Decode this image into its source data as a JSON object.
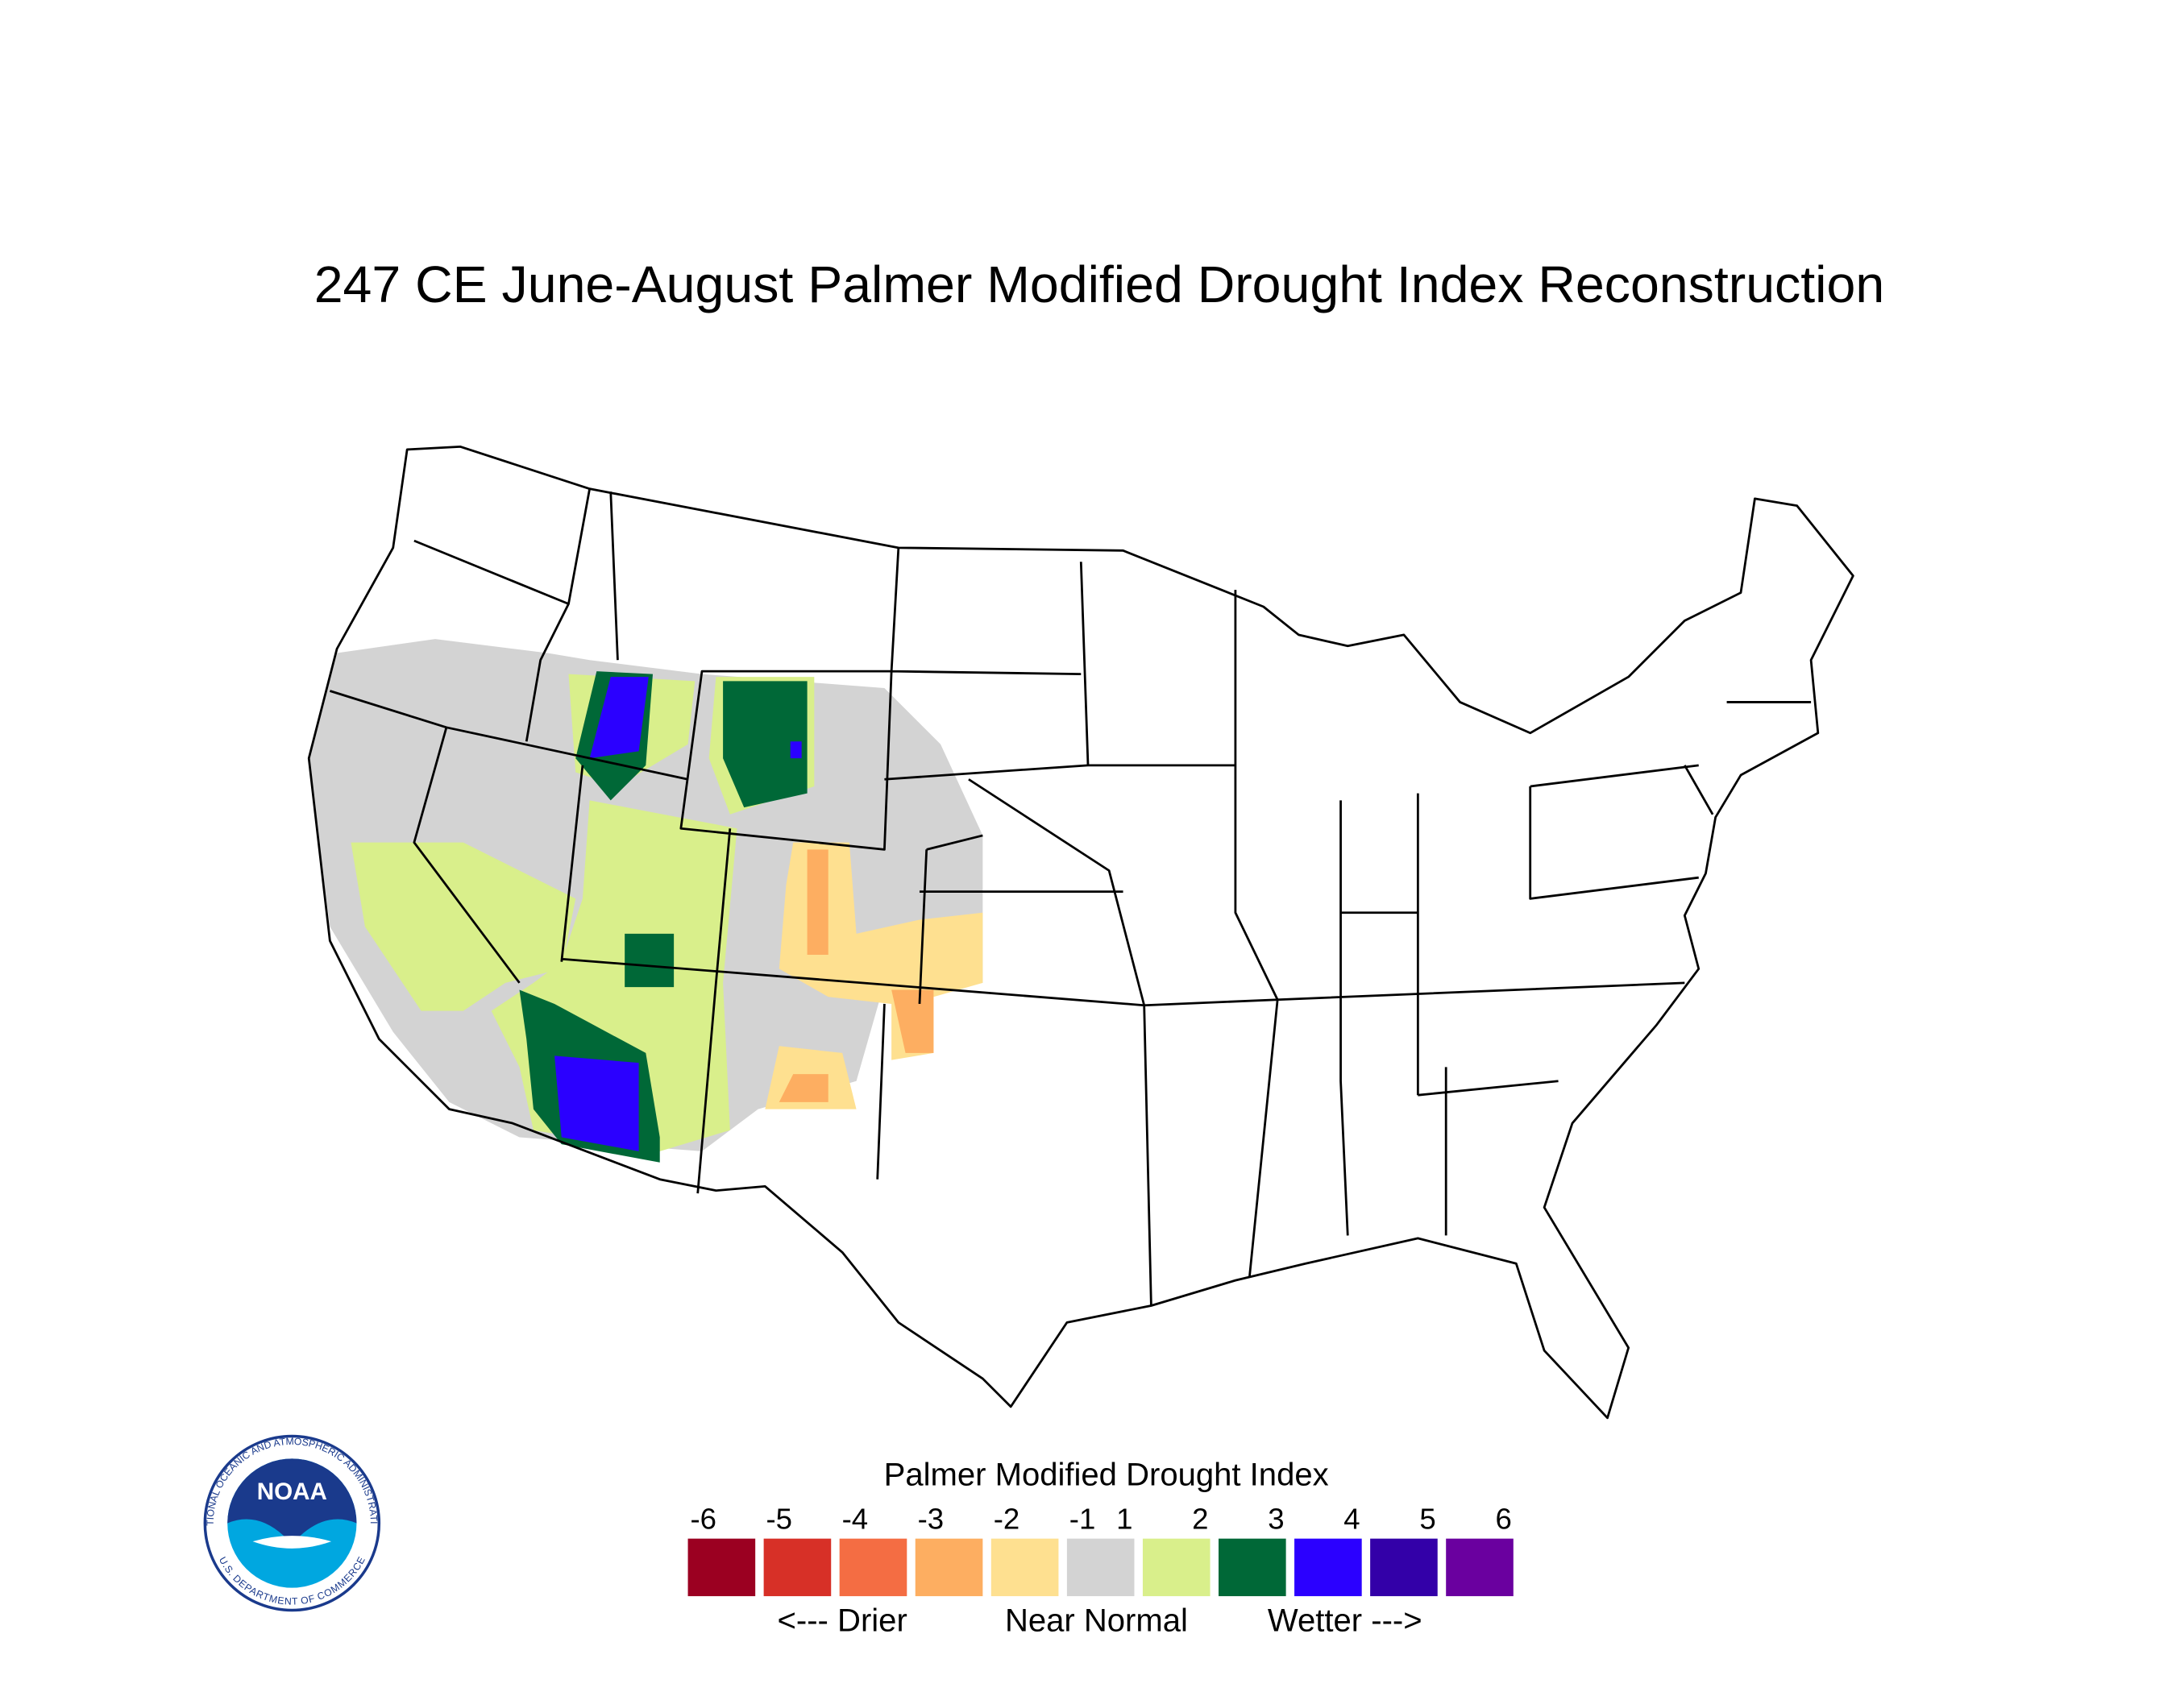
{
  "title": "247 CE  June-August  Palmer Modified Drought Index Reconstruction",
  "legend": {
    "title": "Palmer Modified Drought Index",
    "ticks": [
      "-6",
      "-5",
      "-4",
      "-3",
      "-2",
      "-1",
      "1",
      "2",
      "3",
      "4",
      "5",
      "6"
    ],
    "colors": [
      "#9b0021",
      "#d73027",
      "#f46d43",
      "#fdae61",
      "#fee090",
      "#d3d3d3",
      "#d9ef8b",
      "#006837",
      "#2b00ff",
      "#3300a8",
      "#6a009f"
    ],
    "notes": [
      "<--- Drier",
      "Near Normal",
      "Wetter --->"
    ]
  },
  "logo": {
    "name": "NOAA",
    "ring_top": "NATIONAL OCEANIC AND ATMOSPHERIC ADMINISTRATION",
    "ring_bottom": "U.S. DEPARTMENT OF COMMERCE"
  }
}
